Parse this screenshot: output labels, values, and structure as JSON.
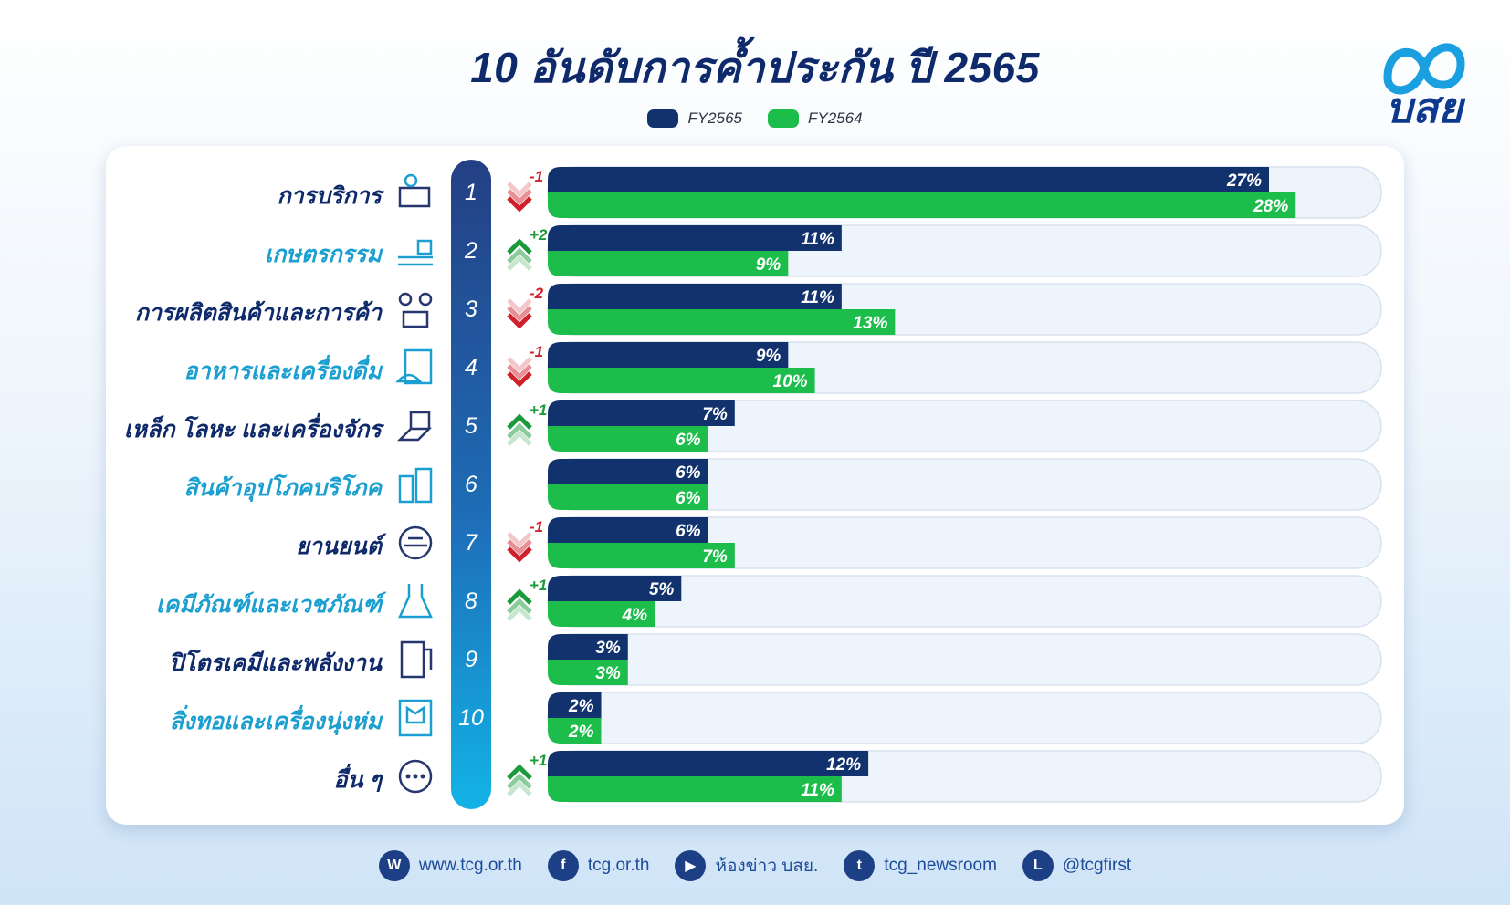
{
  "title": "10 อันดับการค้ำประกัน ปี 2565",
  "logo_text": "บสย",
  "colors": {
    "fy2565": "#12326e",
    "fy2564": "#1dbd4c",
    "up": "#1a9a3a",
    "down": "#d0202a",
    "label_dark": "#0f2a6b",
    "label_light": "#1a9fd0"
  },
  "chart_data": {
    "type": "bar",
    "orientation": "horizontal",
    "title": "10 อันดับการค้ำประกัน ปี 2565",
    "categories": [
      "การบริการ",
      "เกษตรกรรม",
      "การผลิตสินค้าและการค้า",
      "อาหารและเครื่องดื่ม",
      "เหล็ก โลหะ และเครื่องจักร",
      "สินค้าอุปโภคบริโภค",
      "ยานยนต์",
      "เคมีภัณฑ์และเวชภัณฑ์",
      "ปิโตรเคมีและพลังงาน",
      "สิ่งทอและเครื่องนุ่งห่ม",
      "อื่น ๆ"
    ],
    "ranks": [
      "1",
      "2",
      "3",
      "4",
      "5",
      "6",
      "7",
      "8",
      "9",
      "10",
      ""
    ],
    "rank_change": [
      "-1",
      "+2",
      "-2",
      "-1",
      "+1",
      "",
      "-1",
      "+1",
      "",
      "",
      "+1"
    ],
    "unit": "%",
    "series": [
      {
        "name": "FY2565",
        "values": [
          27,
          11,
          11,
          9,
          7,
          6,
          6,
          5,
          3,
          2,
          12
        ]
      },
      {
        "name": "FY2564",
        "values": [
          28,
          9,
          13,
          10,
          6,
          6,
          7,
          4,
          3,
          2,
          11
        ]
      }
    ],
    "xlim": [
      0,
      27
    ],
    "legend": "top-center"
  },
  "footer": [
    {
      "icon": "web-icon",
      "glyph": "W",
      "text": "www.tcg.or.th"
    },
    {
      "icon": "facebook-icon",
      "glyph": "f",
      "text": "tcg.or.th"
    },
    {
      "icon": "youtube-icon",
      "glyph": "▶",
      "text": "ห้องข่าว บสย."
    },
    {
      "icon": "twitter-icon",
      "glyph": "t",
      "text": "tcg_newsroom"
    },
    {
      "icon": "line-icon",
      "glyph": "L",
      "text": "@tcgfirst"
    }
  ]
}
